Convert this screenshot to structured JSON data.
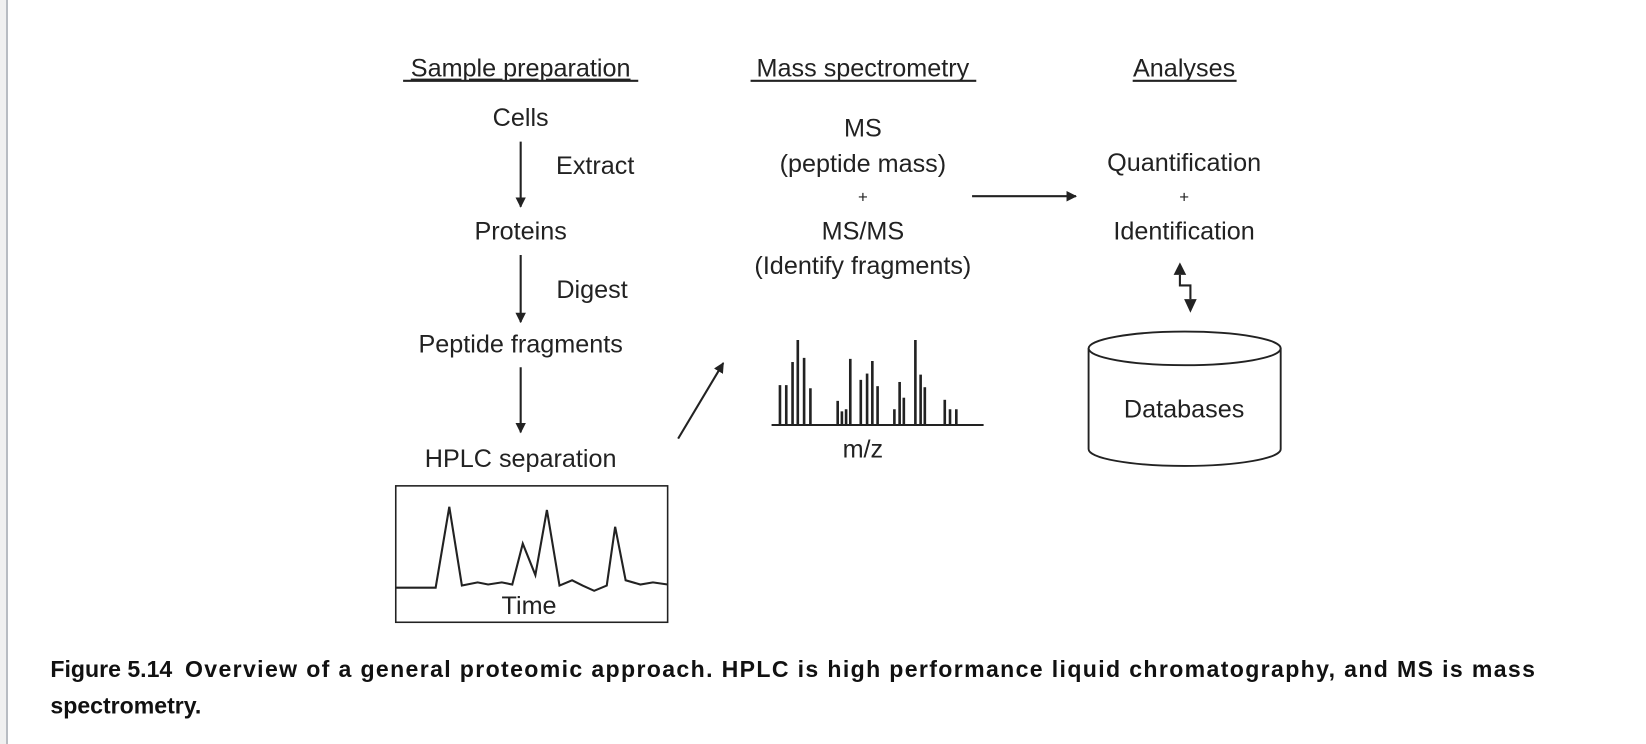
{
  "headers": {
    "sample_preparation": "Sample preparation",
    "mass_spectrometry": "Mass spectrometry",
    "analyses": "Analyses"
  },
  "sample_prep": {
    "cells": "Cells",
    "extract": "Extract",
    "proteins": "Proteins",
    "digest": "Digest",
    "peptide_fragments": "Peptide fragments",
    "hplc_separation": "HPLC separation",
    "time_axis": "Time"
  },
  "mass_spec": {
    "ms": "MS",
    "peptide_mass": "(peptide mass)",
    "plus": "+",
    "msms": "MS/MS",
    "identify_fragments": "(Identify fragments)",
    "mz_axis": "m/z"
  },
  "analyses": {
    "quantification": "Quantification",
    "plus": "+",
    "identification": "Identification",
    "databases": "Databases"
  },
  "caption": {
    "figure_number": "Figure 5.14",
    "line1": "Overview of a general proteomic approach. HPLC is high performance liquid chromatography, and MS is mass",
    "line2": "spectrometry."
  }
}
